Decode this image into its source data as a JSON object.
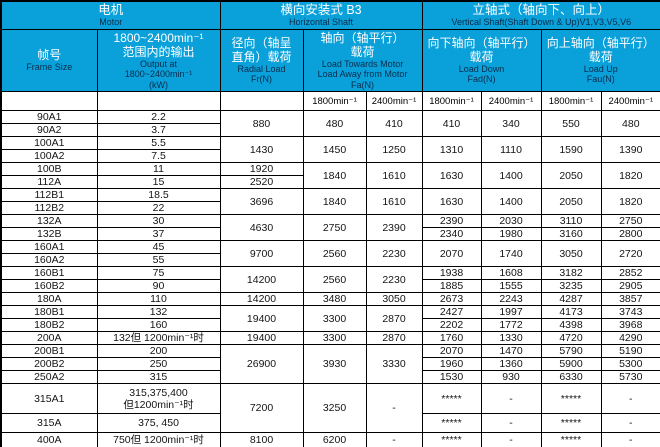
{
  "colors": {
    "header_bg": "#0AA1DB",
    "header_chinese_text": "#FFFFFF",
    "header_english_text": "#0A2C4A",
    "body_text": "#141414",
    "border": "#000000"
  },
  "header": {
    "motor": {
      "zh": "电机",
      "en": "Motor"
    },
    "horizontal": {
      "zh": "横向安装式 B3",
      "en": "Horizontal Shaft"
    },
    "vertical": {
      "zh": "立轴式（轴向下、向上）",
      "en": "Vertical Shaft(Shaft Down & Up)V1,V3,V5,V6"
    },
    "frame": {
      "zh": "帧号",
      "en": "Frame Size"
    },
    "output": {
      "zh": "1800~2400min⁻¹\n范围内的输出",
      "en": "Output at\n1800~2400min⁻¹\n(kW)"
    },
    "radial": {
      "zh": "径向（轴呈\n直角）载荷",
      "en": "Radial Load\nFr(N)"
    },
    "axial": {
      "zh": "轴向（轴平行）\n载荷",
      "en": "Load Towards Motor\nLoad Away from Motor\nFa(N)"
    },
    "down": {
      "zh": "向下轴向（轴平行）\n载荷",
      "en": "Load Down\nFad(N)"
    },
    "up": {
      "zh": "向上轴向（轴平行）\n载荷",
      "en": "Load Up\nFau(N)"
    },
    "speed_headers": [
      "1800min⁻¹",
      "2400min⁻¹",
      "1800min⁻¹",
      "2400min⁻¹",
      "1800min⁻¹",
      "2400min⁻¹"
    ]
  },
  "table": {
    "columns": [
      "frame",
      "output_kw",
      "radial_load_fr",
      "fa_1800",
      "fa_2400",
      "fad_1800",
      "fad_2400",
      "fau_1800",
      "fau_2400"
    ],
    "rows": [
      {
        "cells": [
          "90A1",
          "2.2",
          [
            "880",
            2
          ],
          [
            "480",
            2
          ],
          [
            "410",
            2
          ],
          [
            "410",
            2
          ],
          [
            "340",
            2
          ],
          [
            "550",
            2
          ],
          [
            "480",
            2
          ]
        ]
      },
      {
        "cells": [
          "90A2",
          "3.7",
          null,
          null,
          null,
          null,
          null,
          null,
          null
        ]
      },
      {
        "cells": [
          "100A1",
          "5.5",
          [
            "1430",
            2
          ],
          [
            "1450",
            2
          ],
          [
            "1250",
            2
          ],
          [
            "1310",
            2
          ],
          [
            "1110",
            2
          ],
          [
            "1590",
            2
          ],
          [
            "1390",
            2
          ]
        ]
      },
      {
        "cells": [
          "100A2",
          "7.5",
          null,
          null,
          null,
          null,
          null,
          null,
          null
        ]
      },
      {
        "cells": [
          "100B",
          "11",
          "1920",
          [
            "1840",
            2
          ],
          [
            "1610",
            2
          ],
          [
            "1630",
            2
          ],
          [
            "1400",
            2
          ],
          [
            "2050",
            2
          ],
          [
            "1820",
            2
          ]
        ]
      },
      {
        "cells": [
          "112A",
          "15",
          "2520",
          null,
          null,
          null,
          null,
          null,
          null
        ]
      },
      {
        "cells": [
          "112B1",
          "18.5",
          [
            "3696",
            2
          ],
          [
            "1840",
            2
          ],
          [
            "1610",
            2
          ],
          [
            "1630",
            2
          ],
          [
            "1400",
            2
          ],
          [
            "2050",
            2
          ],
          [
            "1820",
            2
          ]
        ]
      },
      {
        "cells": [
          "112B2",
          "22",
          null,
          null,
          null,
          null,
          null,
          null,
          null
        ]
      },
      {
        "cells": [
          "132A",
          "30",
          [
            "4630",
            2
          ],
          [
            "2750",
            2
          ],
          [
            "2390",
            2
          ],
          "2390",
          "2030",
          "3110",
          "2750"
        ]
      },
      {
        "cells": [
          "132B",
          "37",
          null,
          null,
          null,
          "2340",
          "1980",
          "3160",
          "2800"
        ]
      },
      {
        "cells": [
          "160A1",
          "45",
          [
            "9700",
            2
          ],
          [
            "2560",
            2
          ],
          [
            "2230",
            2
          ],
          [
            "2070",
            2
          ],
          [
            "1740",
            2
          ],
          [
            "3050",
            2
          ],
          [
            "2720",
            2
          ]
        ]
      },
      {
        "cells": [
          "160A2",
          "55",
          null,
          null,
          null,
          null,
          null,
          null,
          null
        ]
      },
      {
        "cells": [
          "160B1",
          "75",
          [
            "14200",
            2
          ],
          [
            "2560",
            2
          ],
          [
            "2230",
            2
          ],
          "1938",
          "1608",
          "3182",
          "2852"
        ]
      },
      {
        "cells": [
          "160B2",
          "90",
          null,
          null,
          null,
          "1885",
          "1555",
          "3235",
          "2905"
        ]
      },
      {
        "cells": [
          "180A",
          "110",
          "14200",
          "3480",
          "3050",
          "2673",
          "2243",
          "4287",
          "3857"
        ]
      },
      {
        "cells": [
          "180B1",
          "132",
          [
            "19400",
            2
          ],
          [
            "3300",
            2
          ],
          [
            "2870",
            2
          ],
          "2427",
          "1997",
          "4173",
          "3743"
        ]
      },
      {
        "cells": [
          "180B2",
          "160",
          null,
          null,
          null,
          "2202",
          "1772",
          "4398",
          "3968"
        ]
      },
      {
        "cells": [
          "200A",
          "132但 1200min⁻¹时",
          "19400",
          "3300",
          "2870",
          "1760",
          "1330",
          "4720",
          "4290"
        ]
      },
      {
        "cells": [
          "200B1",
          "200",
          [
            "26900",
            3
          ],
          [
            "3930",
            3
          ],
          [
            "3330",
            3
          ],
          "2070",
          "1470",
          "5790",
          "5190"
        ]
      },
      {
        "cells": [
          "200B2",
          "250",
          null,
          null,
          null,
          "1960",
          "1360",
          "5900",
          "5300"
        ]
      },
      {
        "cells": [
          "250A2",
          "315",
          null,
          null,
          null,
          "1530",
          "930",
          "6330",
          "5730"
        ]
      },
      {
        "h": 30,
        "cells": [
          "315A1",
          "315,375,400\n但1200min⁻¹时",
          [
            "7200",
            2
          ],
          [
            "3250",
            2
          ],
          [
            "-",
            2
          ],
          "*****",
          "-",
          "*****",
          "-"
        ]
      },
      {
        "h": 19,
        "cells": [
          "315A",
          "375, 450",
          null,
          null,
          null,
          "*****",
          "-",
          "*****",
          "-"
        ]
      },
      {
        "h": 15,
        "cells": [
          "400A",
          "750但 1200min⁻¹时",
          "8100",
          "6200",
          "-",
          "*****",
          "-",
          "*****",
          "-"
        ]
      }
    ]
  }
}
